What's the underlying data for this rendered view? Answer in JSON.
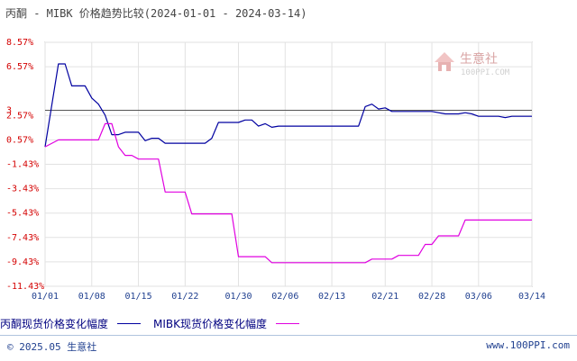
{
  "title": "丙酮 - MIBK 价格趋势比较(2024-01-01 - 2024-03-14)",
  "watermark": {
    "name": "生意社",
    "url": "100PPI.COM"
  },
  "chart_data": {
    "type": "line",
    "ylim": [
      -11.43,
      8.57
    ],
    "y_ticks": [
      "8.57%",
      "6.57%",
      "3",
      "2.57%",
      "0.57%",
      "-1.43%",
      "-3.43%",
      "-5.43%",
      "-7.43%",
      "-9.43%",
      "-11.43%"
    ],
    "y_tick_values": [
      8.57,
      6.57,
      3,
      2.57,
      0.57,
      -1.43,
      -3.43,
      -5.43,
      -7.43,
      -9.43,
      -11.43
    ],
    "x_ticks": [
      "01/01",
      "01/08",
      "01/15",
      "01/22",
      "01/30",
      "02/06",
      "02/13",
      "02/21",
      "02/28",
      "03/06",
      "03/14"
    ],
    "x_tick_days": [
      0,
      7,
      14,
      21,
      29,
      36,
      43,
      51,
      58,
      65,
      73
    ],
    "x_range": [
      0,
      73
    ],
    "grid": true,
    "reference_line": 3,
    "series": [
      {
        "name": "丙酮现货价格变化幅度",
        "color": "#0000a0",
        "points": [
          [
            0,
            0
          ],
          [
            2,
            6.8
          ],
          [
            3,
            6.8
          ],
          [
            4,
            5
          ],
          [
            6,
            5
          ],
          [
            7,
            4
          ],
          [
            8,
            3.5
          ],
          [
            9,
            2.6
          ],
          [
            10,
            1
          ],
          [
            11,
            1
          ],
          [
            12,
            1.2
          ],
          [
            14,
            1.2
          ],
          [
            15,
            0.5
          ],
          [
            16,
            0.7
          ],
          [
            17,
            0.7
          ],
          [
            18,
            0.3
          ],
          [
            24,
            0.3
          ],
          [
            25,
            0.7
          ],
          [
            26,
            2
          ],
          [
            29,
            2
          ],
          [
            30,
            2.2
          ],
          [
            31,
            2.2
          ],
          [
            32,
            1.7
          ],
          [
            33,
            1.9
          ],
          [
            34,
            1.6
          ],
          [
            35,
            1.7
          ],
          [
            47,
            1.7
          ],
          [
            48,
            3.3
          ],
          [
            49,
            3.5
          ],
          [
            50,
            3.1
          ],
          [
            51,
            3.2
          ],
          [
            52,
            2.9
          ],
          [
            58,
            2.9
          ],
          [
            60,
            2.7
          ],
          [
            62,
            2.7
          ],
          [
            63,
            2.8
          ],
          [
            64,
            2.7
          ],
          [
            65,
            2.5
          ],
          [
            68,
            2.5
          ],
          [
            69,
            2.4
          ],
          [
            70,
            2.5
          ],
          [
            73,
            2.5
          ]
        ]
      },
      {
        "name": "MIBK现货价格变化幅度",
        "color": "#e000e0",
        "points": [
          [
            0,
            0
          ],
          [
            2,
            0.57
          ],
          [
            8,
            0.57
          ],
          [
            9,
            1.9
          ],
          [
            10,
            1.9
          ],
          [
            11,
            0
          ],
          [
            12,
            -0.7
          ],
          [
            13,
            -0.7
          ],
          [
            14,
            -1
          ],
          [
            17,
            -1
          ],
          [
            18,
            -3.7
          ],
          [
            21,
            -3.7
          ],
          [
            22,
            -5.5
          ],
          [
            28,
            -5.5
          ],
          [
            29,
            -9
          ],
          [
            33,
            -9
          ],
          [
            34,
            -9.5
          ],
          [
            48,
            -9.5
          ],
          [
            49,
            -9.2
          ],
          [
            52,
            -9.2
          ],
          [
            53,
            -8.9
          ],
          [
            56,
            -8.9
          ],
          [
            57,
            -8
          ],
          [
            58,
            -8
          ],
          [
            59,
            -7.3
          ],
          [
            62,
            -7.3
          ],
          [
            63,
            -6
          ],
          [
            73,
            -6
          ]
        ]
      }
    ]
  },
  "legend": [
    {
      "label": "丙酮现货价格变化幅度",
      "color": "#0000a0"
    },
    {
      "label": "MIBK现货价格变化幅度",
      "color": "#e000e0"
    }
  ],
  "footer": {
    "copyright": "© 2025.05 生意社",
    "site": "www.100PPI.com"
  }
}
